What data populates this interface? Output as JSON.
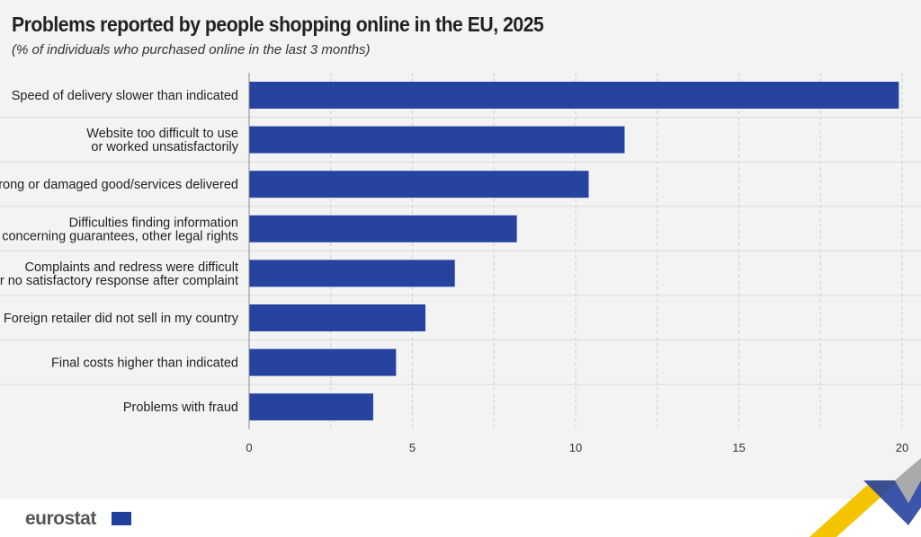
{
  "chart_data": {
    "type": "bar",
    "orientation": "horizontal",
    "title": "Problems reported by people shopping online in the EU, 2025",
    "subtitle": "(% of individuals who purchased online in the last 3 months)",
    "categories": [
      "Speed of delivery slower than indicated",
      "Website too difficult to use\nor worked unsatisfactorily",
      "Wrong or damaged good/services delivered",
      "Difficulties finding information\nconcerning guarantees, other legal rights",
      "Complaints and redress were difficult\nor no satisfactory response after complaint",
      "Foreign retailer did not sell in my country",
      "Final costs higher than indicated",
      "Problems with fraud"
    ],
    "values": [
      19.9,
      11.5,
      10.4,
      8.2,
      6.3,
      5.4,
      4.5,
      3.8
    ],
    "xlim": [
      0,
      20
    ],
    "xticks": [
      0,
      5,
      10,
      15,
      20
    ],
    "grid": true,
    "bar_color": "#2643a0"
  },
  "branding": {
    "logo": "eurostat"
  }
}
